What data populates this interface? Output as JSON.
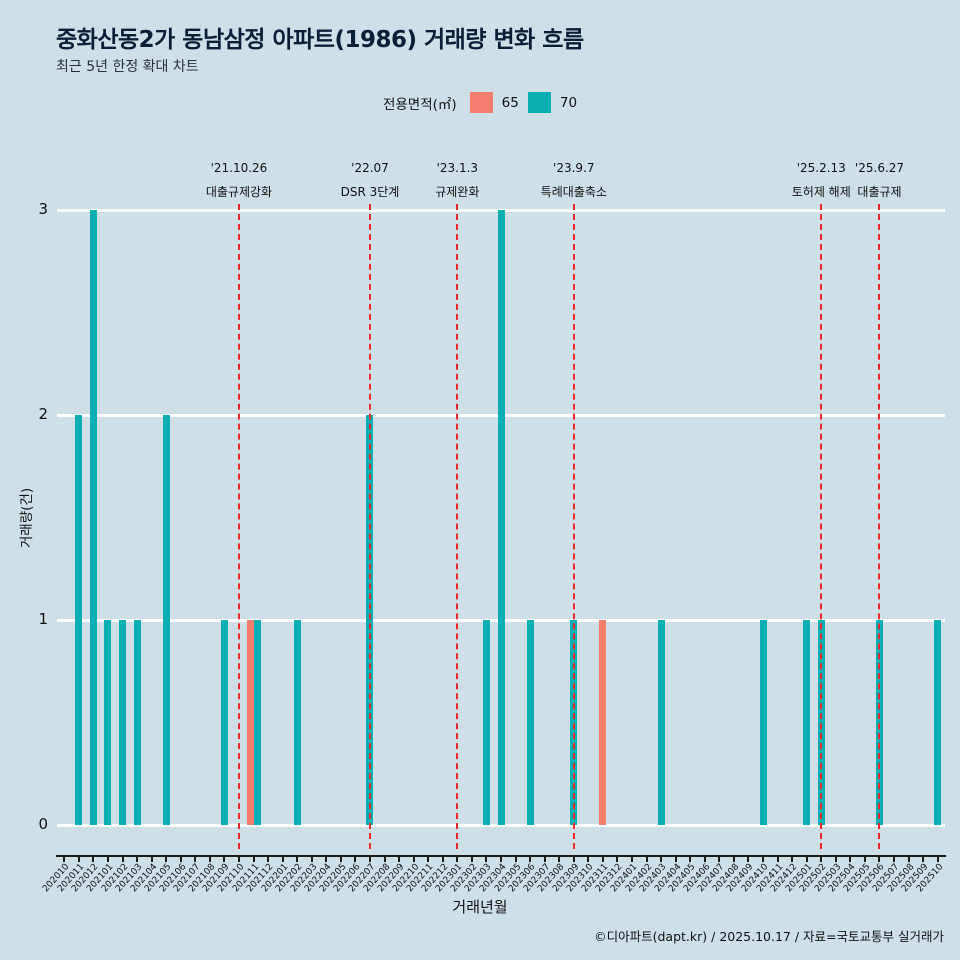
{
  "page": {
    "title": "중화산동2가 동남삼정 아파트(1986) 거래량 변화 흐름",
    "subtitle": "최근 5년 한정 확대 차트",
    "footer": "©디아파트(dapt.kr) / 2025.10.17 / 자료=국토교통부 실거래가"
  },
  "legend": {
    "label": "전용면적(㎡)",
    "items": [
      {
        "name": "65",
        "color": "#f47e6e"
      },
      {
        "name": "70",
        "color": "#0aafb4"
      }
    ]
  },
  "colors": {
    "background": "#cfdfe7",
    "gridline": "#ffffff",
    "series_65": "#f47e6e",
    "series_70": "#0aafb4",
    "annotation_line": "#ea2a2a",
    "title": "#0b1e38"
  },
  "chart_data": {
    "type": "bar",
    "title": "중화산동2가 동남삼정 아파트(1986) 거래량 변화 흐름",
    "subtitle": "최근 5년 한정 확대 차트",
    "xlabel": "거래년월",
    "ylabel": "거래량(건)",
    "ylim": [
      0,
      3
    ],
    "yticks": [
      0,
      1,
      2,
      3
    ],
    "grid": true,
    "legend_position": "top",
    "categories": [
      "202010",
      "202011",
      "202012",
      "202101",
      "202102",
      "202103",
      "202104",
      "202105",
      "202106",
      "202107",
      "202108",
      "202109",
      "202110",
      "202111",
      "202112",
      "202201",
      "202202",
      "202203",
      "202204",
      "202205",
      "202206",
      "202207",
      "202208",
      "202209",
      "202210",
      "202211",
      "202212",
      "202301",
      "202302",
      "202303",
      "202304",
      "202305",
      "202306",
      "202307",
      "202308",
      "202309",
      "202310",
      "202311",
      "202312",
      "202401",
      "202402",
      "202403",
      "202404",
      "202405",
      "202406",
      "202407",
      "202408",
      "202409",
      "202410",
      "202411",
      "202412",
      "202501",
      "202502",
      "202503",
      "202504",
      "202505",
      "202506",
      "202507",
      "202508",
      "202509",
      "202510"
    ],
    "series": [
      {
        "name": "65",
        "color": "#f47e6e",
        "values": [
          0,
          0,
          0,
          0,
          0,
          0,
          0,
          0,
          0,
          0,
          0,
          0,
          0,
          1,
          0,
          0,
          0,
          0,
          0,
          0,
          0,
          0,
          0,
          0,
          0,
          0,
          0,
          0,
          0,
          0,
          0,
          0,
          0,
          0,
          0,
          0,
          0,
          1,
          0,
          0,
          0,
          0,
          0,
          0,
          0,
          0,
          0,
          0,
          0,
          0,
          0,
          0,
          0,
          0,
          0,
          0,
          0,
          0,
          0,
          0,
          0
        ]
      },
      {
        "name": "70",
        "color": "#0aafb4",
        "values": [
          0,
          2,
          3,
          1,
          1,
          1,
          0,
          2,
          0,
          0,
          0,
          1,
          0,
          1,
          0,
          0,
          1,
          0,
          0,
          0,
          0,
          2,
          0,
          0,
          0,
          0,
          0,
          0,
          0,
          1,
          3,
          0,
          1,
          0,
          0,
          1,
          0,
          0,
          0,
          0,
          0,
          1,
          0,
          0,
          0,
          0,
          0,
          0,
          1,
          0,
          0,
          1,
          1,
          0,
          0,
          0,
          1,
          0,
          0,
          0,
          1
        ]
      }
    ],
    "annotations": [
      {
        "month": "202110",
        "date": "'21.10.26",
        "label": "대출규제강화"
      },
      {
        "month": "202207",
        "date": "'22.07",
        "label": "DSR 3단계"
      },
      {
        "month": "202301",
        "date": "'23.1.3",
        "label": "규제완화"
      },
      {
        "month": "202309",
        "date": "'23.9.7",
        "label": "특례대출축소"
      },
      {
        "month": "202502",
        "date": "'25.2.13",
        "label": "토허제 해제"
      },
      {
        "month": "202506",
        "date": "'25.6.27",
        "label": "대출규제"
      }
    ]
  }
}
